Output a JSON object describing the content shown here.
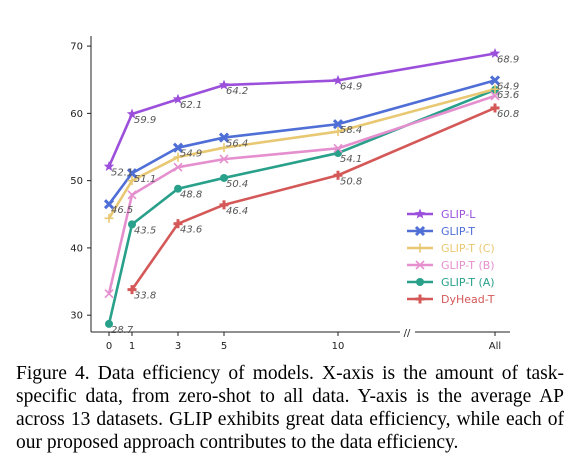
{
  "chart_data": {
    "type": "line",
    "x_tick_labels": [
      "0",
      "1",
      "3",
      "5",
      "10",
      "All"
    ],
    "y_ticks": [
      30,
      40,
      50,
      60,
      70
    ],
    "ylim": [
      27.5,
      71.5
    ],
    "axis_break_between": [
      "10",
      "All"
    ],
    "axis_break_mark": "//",
    "grid": false,
    "legend_position": "lower-right",
    "series": [
      {
        "name": "GLIP-L",
        "color": "#9b4fdb",
        "marker": "star",
        "values": [
          52.1,
          59.9,
          62.1,
          64.2,
          64.9,
          68.9
        ],
        "labels": [
          "52.1",
          "59.9",
          "62.1",
          "64.2",
          "64.9",
          "68.9"
        ]
      },
      {
        "name": "GLIP-T",
        "color": "#4f6fd6",
        "marker": "x-thick",
        "values": [
          46.5,
          51.1,
          54.9,
          56.4,
          58.4,
          64.9
        ],
        "labels": [
          "46.5",
          "51.1",
          "54.9",
          "56.4",
          "58.4",
          "64.9"
        ]
      },
      {
        "name": "GLIP-T (C)",
        "color": "#e8c872",
        "marker": "plus",
        "values": [
          44.4,
          50.0,
          53.5,
          54.9,
          57.3,
          63.6
        ],
        "labels": [
          "",
          "",
          "",
          "",
          "",
          "63.6"
        ]
      },
      {
        "name": "GLIP-T (B)",
        "color": "#e58fcf",
        "marker": "x",
        "values": [
          33.2,
          47.9,
          52.0,
          53.2,
          54.8,
          62.6
        ],
        "labels": [
          "",
          "",
          "",
          "",
          "",
          ""
        ]
      },
      {
        "name": "GLIP-T (A)",
        "color": "#28a08a",
        "marker": "circle",
        "values": [
          28.7,
          43.5,
          48.8,
          50.4,
          54.1,
          63.5
        ],
        "labels": [
          "28.7",
          "43.5",
          "48.8",
          "50.4",
          "54.1",
          ""
        ]
      },
      {
        "name": "DyHead-T",
        "color": "#d45858",
        "marker": "plus-thick",
        "values": [
          null,
          33.8,
          43.6,
          46.4,
          50.8,
          60.8
        ],
        "labels": [
          "",
          "33.8",
          "43.6",
          "46.4",
          "50.8",
          "60.8"
        ]
      }
    ]
  },
  "caption": "Figure 4. Data efficiency of models. X-axis is the amount of task-specific data, from zero-shot to all data. Y-axis is the average AP across 13 datasets. GLIP exhibits great data efficiency, while each of our proposed approach contributes to the data efficiency."
}
